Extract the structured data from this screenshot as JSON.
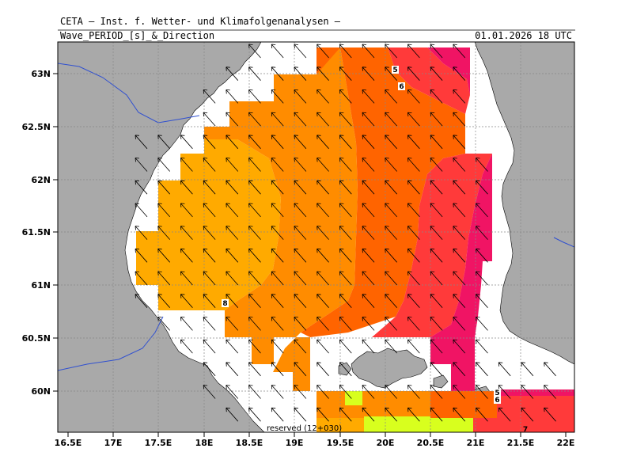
{
  "header": {
    "institution": "CETA — Inst. f. Wetter- und Klimafolgenanalysen —",
    "field": "Wave_PERIOD_[s]_&_Direction",
    "valid_time": "01.01.2026 18 UTC"
  },
  "axes": {
    "lon_ticks": [
      "16.5E",
      "17E",
      "17.5E",
      "18E",
      "18.5E",
      "19E",
      "19.5E",
      "20E",
      "20.5E",
      "21E",
      "21.5E",
      "22E"
    ],
    "lat_ticks": [
      "63N",
      "62.5N",
      "62N",
      "61.5N",
      "61N",
      "60.5N",
      "60N"
    ]
  },
  "contour_labels": [
    "5",
    "6",
    "8",
    "5",
    "6",
    "7"
  ],
  "footer": {
    "credit": "reserved (12+030)"
  },
  "colors": {
    "land": "#a9a9a9",
    "ocean_unshaded": "#ffffff",
    "period_8_plus": "#ffaa00",
    "period_7_8": "#ff8c00",
    "period_6_7": "#ff6400",
    "period_5_6": "#ff3a3a",
    "period_lt_5": "#f01464",
    "period_low_south": "#d8ff1e",
    "rivers": "#3050d0"
  },
  "map_extent": {
    "lon": [
      16.5,
      22.0
    ],
    "lat": [
      59.6,
      63.3
    ]
  },
  "wave_direction": "from south-east, arrows pointing north-west"
}
